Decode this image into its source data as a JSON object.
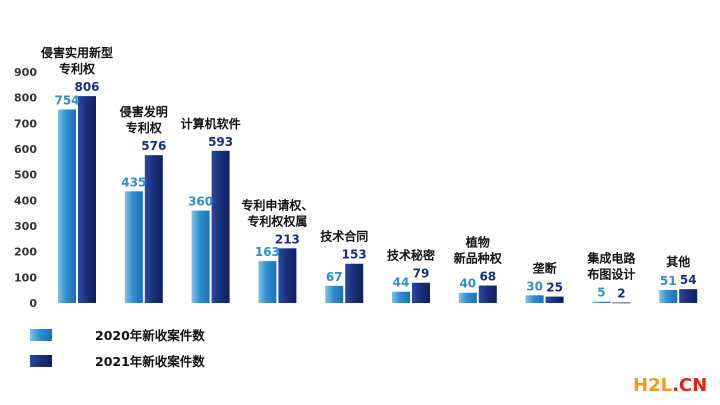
{
  "chart_data": {
    "type": "bar",
    "title": "",
    "xlabel": "",
    "ylabel": "",
    "ylim": [
      0,
      900
    ],
    "yticks": [
      0,
      100,
      200,
      300,
      400,
      500,
      600,
      700,
      800,
      900
    ],
    "grid": false,
    "legend_position": "bottom-left",
    "categories": [
      [
        "侵害实用新型",
        "专利权"
      ],
      [
        "侵害发明",
        "专利权"
      ],
      [
        "计算机软件"
      ],
      [
        "专利申请权、",
        "专利权权属"
      ],
      [
        "技术合同"
      ],
      [
        "技术秘密"
      ],
      [
        "植物",
        "新品种权"
      ],
      [
        "垄断"
      ],
      [
        "集成电路",
        "布图设计"
      ],
      [
        "其他"
      ]
    ],
    "series": [
      {
        "name": "2020年新收案件数",
        "values": [
          754,
          435,
          360,
          163,
          67,
          44,
          40,
          30,
          5,
          51
        ],
        "color": "#2f8fd0"
      },
      {
        "name": "2021年新收案件数",
        "values": [
          806,
          576,
          593,
          213,
          153,
          79,
          68,
          25,
          2,
          54
        ],
        "color": "#1a2f7a"
      }
    ]
  },
  "watermark": {
    "part1": "H2L",
    "part2": ".CN"
  }
}
